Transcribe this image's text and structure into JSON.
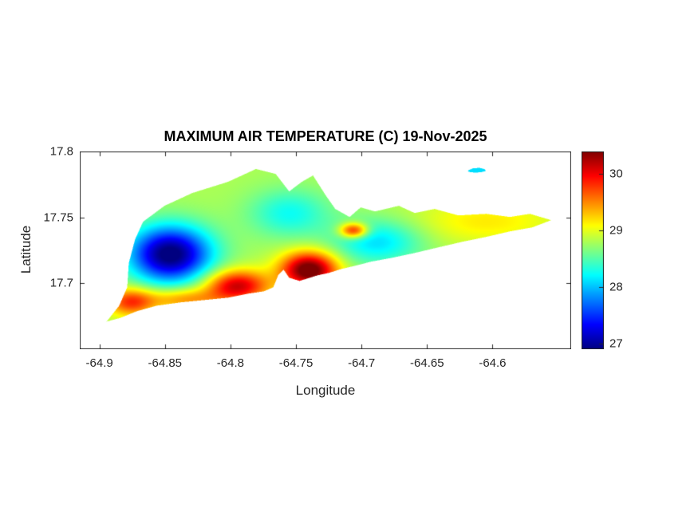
{
  "chart_data": {
    "type": "heatmap",
    "title": "MAXIMUM AIR TEMPERATURE (C) 19-Nov-2025",
    "date": "19-Nov-2025",
    "units": "C",
    "xlabel": "Longitude",
    "ylabel": "Latitude",
    "xlim": [
      -64.915,
      -64.54
    ],
    "ylim": [
      17.65,
      17.8
    ],
    "xticks": [
      -64.9,
      -64.85,
      -64.8,
      -64.75,
      -64.7,
      -64.65,
      -64.6
    ],
    "xtick_labels": [
      "-64.9",
      "-64.85",
      "-64.8",
      "-64.75",
      "-64.7",
      "-64.65",
      "-64.6"
    ],
    "yticks": [
      17.7,
      17.75,
      17.8
    ],
    "ytick_labels": [
      "17.7",
      "17.75",
      "17.8"
    ],
    "colormap": "jet",
    "clim": [
      26.9,
      30.4
    ],
    "colorbar_ticks": [
      27,
      28,
      29,
      30
    ],
    "colorbar_tick_labels": [
      "27",
      "28",
      "29",
      "30"
    ],
    "grid": false,
    "base_temp_c": 28.8,
    "temperature_features": [
      {
        "name": "cold-pool-northwest",
        "lon": -64.846,
        "lat": 17.722,
        "delta_c": -2.0,
        "sigma_lon": 0.022,
        "sigma_lat": 0.015
      },
      {
        "name": "cool-band-north-central",
        "lon": -64.755,
        "lat": 17.753,
        "delta_c": -0.55,
        "sigma_lon": 0.022,
        "sigma_lat": 0.013
      },
      {
        "name": "cool-patch-east-central",
        "lon": -64.688,
        "lat": 17.7315,
        "delta_c": -0.7,
        "sigma_lon": 0.024,
        "sigma_lat": 0.012
      },
      {
        "name": "hot-strip-south-west",
        "lon": -64.795,
        "lat": 17.698,
        "delta_c": 1.35,
        "sigma_lon": 0.017,
        "sigma_lat": 0.0085
      },
      {
        "name": "hot-strip-south-central",
        "lon": -64.74,
        "lat": 17.71,
        "delta_c": 1.8,
        "sigma_lon": 0.015,
        "sigma_lat": 0.0095
      },
      {
        "name": "hot-spot-north-coast",
        "lon": -64.706,
        "lat": 17.74,
        "delta_c": 1.3,
        "sigma_lon": 0.0075,
        "sigma_lat": 0.004
      },
      {
        "name": "warm-spot-west-end",
        "lon": -64.876,
        "lat": 17.686,
        "delta_c": 1.0,
        "sigma_lon": 0.013,
        "sigma_lat": 0.0075
      },
      {
        "name": "warm-south-coast-west",
        "lon": -64.835,
        "lat": 17.688,
        "delta_c": 0.7,
        "sigma_lon": 0.02,
        "sigma_lat": 0.006
      },
      {
        "name": "warm-east-end",
        "lon": -64.605,
        "lat": 17.747,
        "delta_c": 0.35,
        "sigma_lon": 0.04,
        "sigma_lat": 0.012
      }
    ],
    "island_outline": [
      [
        -64.8946,
        17.6709
      ],
      [
        -64.8849,
        17.683
      ],
      [
        -64.8788,
        17.697
      ],
      [
        -64.8776,
        17.7152
      ],
      [
        -64.8728,
        17.7333
      ],
      [
        -64.8667,
        17.7467
      ],
      [
        -64.8503,
        17.7588
      ],
      [
        -64.8291,
        17.7685
      ],
      [
        -64.8018,
        17.777
      ],
      [
        -64.7806,
        17.7867
      ],
      [
        -64.7655,
        17.783
      ],
      [
        -64.7552,
        17.7697
      ],
      [
        -64.7455,
        17.777
      ],
      [
        -64.737,
        17.7818
      ],
      [
        -64.7273,
        17.7667
      ],
      [
        -64.72,
        17.7564
      ],
      [
        -64.7091,
        17.7503
      ],
      [
        -64.7006,
        17.7576
      ],
      [
        -64.6897,
        17.7545
      ],
      [
        -64.6715,
        17.7588
      ],
      [
        -64.6594,
        17.7533
      ],
      [
        -64.6442,
        17.7564
      ],
      [
        -64.6261,
        17.7515
      ],
      [
        -64.6048,
        17.7527
      ],
      [
        -64.5867,
        17.7503
      ],
      [
        -64.5715,
        17.7527
      ],
      [
        -64.5552,
        17.7479
      ],
      [
        -64.5697,
        17.7424
      ],
      [
        -64.5867,
        17.7394
      ],
      [
        -64.6048,
        17.7352
      ],
      [
        -64.623,
        17.7315
      ],
      [
        -64.6412,
        17.7273
      ],
      [
        -64.6594,
        17.723
      ],
      [
        -64.6764,
        17.7194
      ],
      [
        -64.6927,
        17.7164
      ],
      [
        -64.7048,
        17.7133
      ],
      [
        -64.7152,
        17.7109
      ],
      [
        -64.7248,
        17.7079
      ],
      [
        -64.7333,
        17.7061
      ],
      [
        -64.7473,
        17.7018
      ],
      [
        -64.7552,
        17.7042
      ],
      [
        -64.7594,
        17.7103
      ],
      [
        -64.7636,
        17.7061
      ],
      [
        -64.7673,
        17.697
      ],
      [
        -64.7745,
        17.6939
      ],
      [
        -64.7867,
        17.6921
      ],
      [
        -64.8018,
        17.6891
      ],
      [
        -64.82,
        17.6873
      ],
      [
        -64.8382,
        17.6855
      ],
      [
        -64.8564,
        17.683
      ],
      [
        -64.8715,
        17.6788
      ],
      [
        -64.8836,
        17.6739
      ]
    ],
    "islets": [
      {
        "name": "small-cay-northeast",
        "temp_c": 28.1,
        "outline": [
          [
            -64.619,
            17.7855
          ],
          [
            -64.615,
            17.7872
          ],
          [
            -64.61,
            17.7876
          ],
          [
            -64.606,
            17.7866
          ],
          [
            -64.605,
            17.7852
          ],
          [
            -64.609,
            17.7842
          ],
          [
            -64.614,
            17.784
          ],
          [
            -64.618,
            17.7845
          ]
        ]
      }
    ]
  },
  "colors": {
    "axis": "#262626",
    "title": "#000000",
    "background": "#ffffff"
  }
}
